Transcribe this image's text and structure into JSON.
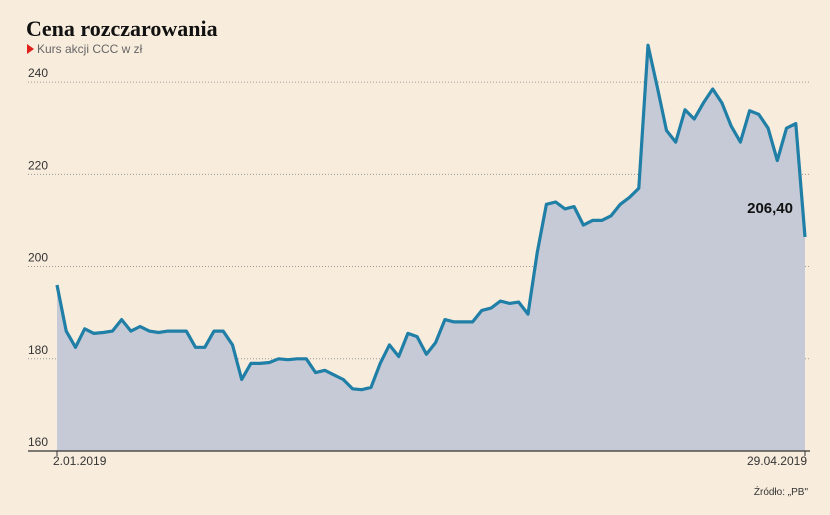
{
  "chart_data": {
    "type": "line",
    "title": "Cena rozczarowania",
    "subtitle": "Kurs akcji CCC w zł",
    "source": "Źródło: „PB\"",
    "categories": [
      "2.01.2019",
      null,
      null,
      null,
      null,
      null,
      null,
      null,
      null,
      null,
      null,
      null,
      null,
      null,
      null,
      null,
      null,
      null,
      null,
      null,
      null,
      null,
      null,
      null,
      null,
      null,
      null,
      null,
      null,
      null,
      null,
      null,
      null,
      null,
      null,
      null,
      null,
      null,
      null,
      null,
      null,
      null,
      null,
      null,
      null,
      null,
      null,
      null,
      null,
      null,
      null,
      null,
      null,
      null,
      null,
      null,
      null,
      null,
      null,
      null,
      null,
      null,
      null,
      null,
      null,
      null,
      null,
      null,
      null,
      null,
      null,
      null,
      null,
      null,
      null,
      null,
      null,
      null,
      null,
      null,
      null,
      "29.04.2019"
    ],
    "values": [
      196,
      186,
      182.5,
      186.5,
      185.5,
      185.7,
      186,
      188.5,
      186,
      187,
      186,
      185.7,
      186,
      186,
      186,
      182.5,
      182.5,
      186,
      186,
      183,
      175.5,
      179,
      179,
      179.2,
      180,
      179.8,
      180,
      180,
      177,
      177.5,
      176.5,
      175.5,
      173.5,
      173.3,
      173.8,
      179,
      183,
      180.5,
      185.5,
      184.8,
      181,
      183.5,
      188.5,
      188,
      188,
      188,
      190.5,
      191,
      192.5,
      192,
      192.3,
      189.7,
      203,
      213.5,
      214,
      212.5,
      213,
      209,
      210,
      210,
      211,
      213.5,
      215,
      217,
      248,
      239,
      229.5,
      227,
      234,
      232,
      235.5,
      238.5,
      235.5,
      230.5,
      227,
      233.8,
      233,
      230,
      223,
      230,
      231,
      206.4
    ],
    "value_labels": [
      null,
      null,
      null,
      null,
      null,
      null,
      null,
      null,
      null,
      null,
      null,
      null,
      null,
      null,
      null,
      null,
      null,
      null,
      null,
      null,
      null,
      null,
      null,
      null,
      null,
      null,
      null,
      null,
      null,
      null,
      null,
      null,
      null,
      null,
      null,
      null,
      null,
      null,
      null,
      null,
      null,
      null,
      null,
      null,
      null,
      null,
      null,
      null,
      null,
      null,
      null,
      null,
      null,
      null,
      null,
      null,
      null,
      null,
      null,
      null,
      null,
      null,
      null,
      null,
      null,
      null,
      null,
      null,
      null,
      null,
      null,
      null,
      null,
      null,
      null,
      null,
      null,
      null,
      null,
      null,
      null,
      "206,40"
    ],
    "color": "#1f7fa6",
    "area_color": "#c6c9d6",
    "ylim": [
      160,
      250
    ],
    "yticks": [
      160,
      180,
      200,
      220,
      240
    ],
    "grid": true
  }
}
